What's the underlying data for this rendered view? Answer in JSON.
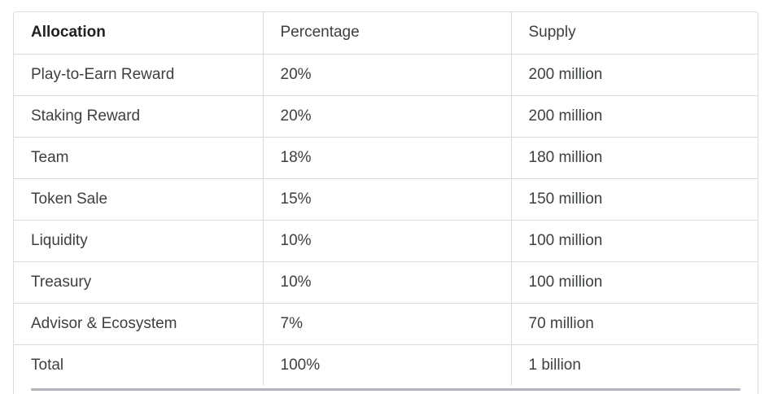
{
  "table": {
    "headers": [
      "Allocation",
      "Percentage",
      "Supply"
    ],
    "rows": [
      [
        "Play-to-Earn Reward",
        "20%",
        "200 million"
      ],
      [
        "Staking Reward",
        "20%",
        "200 million"
      ],
      [
        "Team",
        "18%",
        "180 million"
      ],
      [
        "Token Sale",
        "15%",
        "150 million"
      ],
      [
        "Liquidity",
        "10%",
        "100 million"
      ],
      [
        "Treasury",
        "10%",
        "100 million"
      ],
      [
        "Advisor & Ecosystem",
        "7%",
        "70 million"
      ],
      [
        "Total",
        "100%",
        "1 billion"
      ]
    ]
  }
}
